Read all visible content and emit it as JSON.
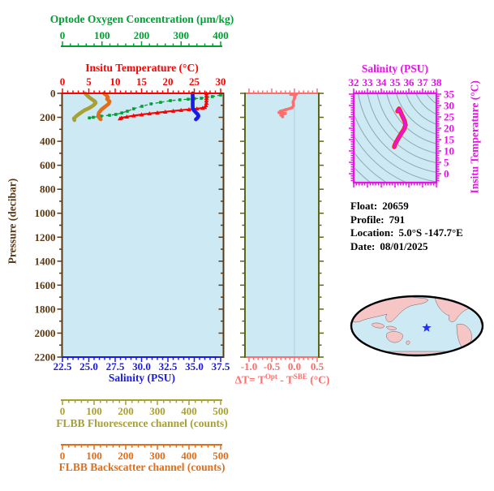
{
  "info": {
    "float_label": "Float:",
    "float_value": "20659",
    "profile_label": "Profile:",
    "profile_value": "791",
    "location_label": "Location:",
    "location_value": "5.0°S  -147.7°E",
    "date_label": "Date:",
    "date_value": "08/01/2025"
  },
  "map": {
    "ocean_color": "#CDE9F4",
    "land_color": "#F6C5C5",
    "outline_color": "#000000",
    "star_color": "#2233EE"
  },
  "chart_data": [
    {
      "id": "profile-multi-axis",
      "type": "line",
      "plot_bg": "#CDE9F4",
      "y_axis": {
        "label": "Pressure (decibar)",
        "range": [
          0,
          2200
        ],
        "major_step": 200,
        "minor_step": 100,
        "tick_labels": [
          "0",
          "200",
          "400",
          "600",
          "800",
          "1000",
          "1200",
          "1400",
          "1600",
          "1800",
          "2000",
          "2200"
        ],
        "color": "#5C3A14"
      },
      "x_axes": [
        {
          "id": "oxygen",
          "label": "Optode Oxygen Concentration (µm/kg)",
          "range": [
            0,
            400
          ],
          "major_step": 100,
          "minor_step": 20,
          "tick_labels": [
            "0",
            "100",
            "200",
            "300",
            "400"
          ],
          "color": "#00A033"
        },
        {
          "id": "temperature",
          "label": "Insitu Temperature (°C)",
          "range": [
            0,
            30
          ],
          "major_step": 5,
          "minor_step": 1,
          "tick_labels": [
            "0",
            "5",
            "10",
            "15",
            "20",
            "25",
            "30"
          ],
          "color": "#FF0000"
        },
        {
          "id": "salinity",
          "label": "Salinity (PSU)",
          "range": [
            22.5,
            37.5
          ],
          "major_step": 2.5,
          "minor_step": 0.5,
          "tick_labels": [
            "22.5",
            "25.0",
            "27.5",
            "30.0",
            "32.5",
            "35.0",
            "37.5"
          ],
          "color": "#1A1AE6"
        },
        {
          "id": "fluorescence",
          "label": "FLBB Fluorescence channel (counts)",
          "range": [
            0,
            500
          ],
          "major_step": 100,
          "minor_step": 20,
          "tick_labels": [
            "0",
            "100",
            "200",
            "300",
            "400",
            "500"
          ],
          "color": "#A8A032"
        },
        {
          "id": "backscatter",
          "label": "FLBB Backscatter channel (counts)",
          "range": [
            0,
            500
          ],
          "major_step": 100,
          "minor_step": 20,
          "tick_labels": [
            "0",
            "100",
            "200",
            "300",
            "400",
            "500"
          ],
          "color": "#E06E1A"
        }
      ],
      "series": [
        {
          "name": "optode-oxygen",
          "x_axis": "oxygen",
          "color": "#00A033",
          "marker": "square",
          "line": "dashed",
          "points": [
            [
              400,
              14
            ],
            [
              379,
              27
            ],
            [
              365,
              34
            ],
            [
              351,
              41
            ],
            [
              334,
              44
            ],
            [
              318,
              49
            ],
            [
              297,
              54
            ],
            [
              273,
              61
            ],
            [
              248,
              75
            ],
            [
              224,
              88
            ],
            [
              201,
              108
            ],
            [
              180,
              129
            ],
            [
              164,
              149
            ],
            [
              150,
              163
            ],
            [
              135,
              176
            ],
            [
              119,
              183
            ],
            [
              98,
              190
            ],
            [
              78,
              200
            ],
            [
              68,
              205
            ]
          ]
        },
        {
          "name": "insitu-temperature",
          "x_axis": "temperature",
          "color": "#FF0000",
          "marker": "triangle",
          "line": "solid",
          "points": [
            [
              27.3,
              0
            ],
            [
              27.3,
              20
            ],
            [
              27.3,
              40
            ],
            [
              27.3,
              60
            ],
            [
              27.3,
              80
            ],
            [
              27.2,
              100
            ],
            [
              27.0,
              115
            ],
            [
              26.6,
              122
            ],
            [
              25.5,
              128
            ],
            [
              24.0,
              134
            ],
            [
              22.5,
              140
            ],
            [
              21.0,
              147
            ],
            [
              19.5,
              154
            ],
            [
              18.0,
              161
            ],
            [
              16.5,
              169
            ],
            [
              15.0,
              177
            ],
            [
              13.5,
              186
            ],
            [
              12.2,
              196
            ],
            [
              11.2,
              204
            ],
            [
              10.9,
              210
            ]
          ]
        },
        {
          "name": "salinity",
          "x_axis": "salinity",
          "color": "#1A1AE6",
          "marker": "none",
          "line": "thick",
          "points": [
            [
              34.85,
              0
            ],
            [
              34.85,
              30
            ],
            [
              34.85,
              60
            ],
            [
              34.85,
              90
            ],
            [
              34.85,
              110
            ],
            [
              34.87,
              125
            ],
            [
              34.95,
              140
            ],
            [
              35.1,
              155
            ],
            [
              35.25,
              168
            ],
            [
              35.37,
              180
            ],
            [
              35.4,
              190
            ],
            [
              35.3,
              205
            ],
            [
              35.15,
              217
            ]
          ]
        },
        {
          "name": "flbb-fluorescence",
          "x_axis": "fluorescence",
          "color": "#A8A032",
          "marker": "none",
          "line": "thick",
          "points": [
            [
              72,
              0
            ],
            [
              77,
              14
            ],
            [
              85,
              34
            ],
            [
              95,
              54
            ],
            [
              103,
              68
            ],
            [
              105,
              81
            ],
            [
              97,
              102
            ],
            [
              85,
              122
            ],
            [
              69,
              142
            ],
            [
              54,
              169
            ],
            [
              44,
              190
            ],
            [
              36,
              210
            ],
            [
              38,
              224
            ]
          ]
        },
        {
          "name": "flbb-backscatter",
          "x_axis": "backscatter",
          "color": "#E06E1A",
          "marker": "none",
          "line": "thick",
          "points": [
            [
              131,
              0
            ],
            [
              138,
              14
            ],
            [
              144,
              34
            ],
            [
              141,
              47
            ],
            [
              149,
              68
            ],
            [
              146,
              88
            ],
            [
              133,
              115
            ],
            [
              123,
              136
            ],
            [
              115,
              163
            ],
            [
              113,
              190
            ],
            [
              118,
              210
            ],
            [
              121,
              217
            ]
          ]
        }
      ]
    },
    {
      "id": "delta-t",
      "type": "line",
      "plot_bg": "#CDE9F4",
      "x_axis": {
        "label_parts": [
          "ΔT= T",
          "Opt",
          " - T",
          "SBE",
          " (°C)"
        ],
        "range": [
          -1.0,
          0.5
        ],
        "major_step": 0.5,
        "minor_step": 0.1,
        "tick_labels": [
          "-1.0",
          "-0.5",
          "0.0",
          "0.5"
        ],
        "color": "#FF6E6E"
      },
      "y_axis": {
        "range": [
          0,
          2200
        ],
        "major_step": 200,
        "minor_step": 100,
        "color": "#5A6618"
      },
      "series": [
        {
          "name": "delta-temperature",
          "color": "#FF6E6E",
          "points": [
            [
              0.04,
              5
            ],
            [
              -0.08,
              9
            ],
            [
              0.02,
              14
            ],
            [
              0.0,
              40
            ],
            [
              -0.03,
              75
            ],
            [
              -0.02,
              100
            ],
            [
              -0.05,
              120
            ],
            [
              -0.18,
              135
            ],
            [
              -0.3,
              148
            ],
            [
              -0.34,
              160
            ],
            [
              -0.2,
              168
            ],
            [
              -0.3,
              180
            ],
            [
              -0.26,
              195
            ]
          ]
        }
      ]
    },
    {
      "id": "ts-diagram",
      "type": "line",
      "plot_bg": "#CDE9F4",
      "x_axis": {
        "label": "Salinity (PSU)",
        "range": [
          32,
          38
        ],
        "major_step": 1,
        "minor_step": 0.2,
        "tick_labels": [
          "32",
          "33",
          "34",
          "35",
          "36",
          "37",
          "38"
        ],
        "color": "#E812E8"
      },
      "y_axis": {
        "label": "Insitu Temperature (°C)",
        "tick_range": [
          0,
          35
        ],
        "major_step": 5,
        "minor_step": 1,
        "tick_labels": [
          "0",
          "5",
          "10",
          "15",
          "20",
          "25",
          "30",
          "35"
        ],
        "color": "#E812E8"
      },
      "contours": {
        "color": "#8FA6AE",
        "count": 14
      },
      "series": [
        {
          "name": "t-s-profile",
          "color": "#E812E8",
          "under_color": "#FF2020",
          "points": [
            [
              35.29,
              28.6
            ],
            [
              35.18,
              27.5
            ],
            [
              35.35,
              27.9
            ],
            [
              35.47,
              26.1
            ],
            [
              35.59,
              24.6
            ],
            [
              35.71,
              22.9
            ],
            [
              35.76,
              21.4
            ],
            [
              35.65,
              19.6
            ],
            [
              35.47,
              17.9
            ],
            [
              35.29,
              16.1
            ],
            [
              35.12,
              14.3
            ],
            [
              35.0,
              12.9
            ],
            [
              34.94,
              11.8
            ]
          ]
        }
      ]
    }
  ]
}
